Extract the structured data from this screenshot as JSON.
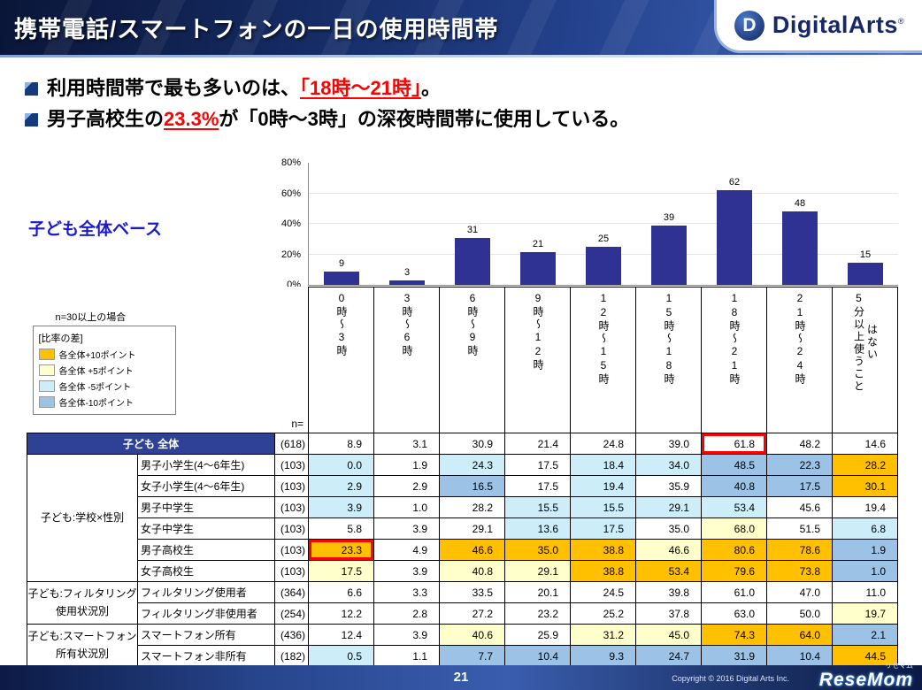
{
  "header": {
    "title": "携帯電話/スマートフォンの一日の使用時間帯",
    "logo": {
      "mark": "D",
      "text": "DigitalArts",
      "reg": "®"
    }
  },
  "bullets": [
    {
      "pre": "利用時間帯で最も多いのは、",
      "em": "「18時～21時」",
      "post": "。"
    },
    {
      "pre": "男子高校生の",
      "em": "23.3%",
      "post": "が「0時～3時」の深夜時間帯に使用している。"
    }
  ],
  "base_label": "子ども全体ベース",
  "legend": {
    "note": "n=30以上の場合",
    "title": "[比率の差]",
    "items": [
      {
        "label": "各全体+10ポイント",
        "color": "#FFC000"
      },
      {
        "label": "各全体 +5ポイント",
        "color": "#FFFFCC"
      },
      {
        "label": "各全体 -5ポイント",
        "color": "#CDEDF8"
      },
      {
        "label": "各全体-10ポイント",
        "color": "#9CC2E5"
      }
    ]
  },
  "chart_data": {
    "type": "bar",
    "title": "",
    "xlabel": "",
    "ylabel": "",
    "categories": [
      "0時～3時",
      "3時～6時",
      "6時～9時",
      "9時～12時",
      "12時～15時",
      "15時～18時",
      "18時～21時",
      "21時～24時",
      "5分以上使うことはない"
    ],
    "values": [
      8.9,
      3.1,
      30.9,
      21.4,
      24.8,
      39.0,
      61.8,
      48.2,
      14.6
    ],
    "bar_labels": [
      "9",
      "3",
      "31",
      "21",
      "25",
      "39",
      "62",
      "48",
      "15"
    ],
    "y_ticks": [
      80,
      60,
      40,
      20,
      0
    ],
    "ylim": [
      0,
      80
    ],
    "bar_color": "#2F3293",
    "grid": true,
    "legend_position": "none"
  },
  "table": {
    "n_header": "n=",
    "category_labels_vertical": [
      "0時～3時",
      "3時～6時",
      "6時～9時",
      "9時～12時",
      "12時～15時",
      "15時～18時",
      "18時～21時",
      "21時～24時",
      "5分以上使うこと\nはない"
    ],
    "total_row": {
      "label": "子ども 全体",
      "n": "(618)",
      "values": [
        8.9,
        3.1,
        30.9,
        21.4,
        24.8,
        39.0,
        61.8,
        48.2,
        14.6
      ],
      "red_box_col": 6
    },
    "groups": [
      {
        "name": "子ども:学校×性別",
        "rows": [
          {
            "label": "男子小学生(4～6年生)",
            "n": "(103)",
            "values": [
              0.0,
              1.9,
              24.3,
              17.5,
              18.4,
              34.0,
              48.5,
              22.3,
              28.2
            ]
          },
          {
            "label": "女子小学生(4～6年生)",
            "n": "(103)",
            "values": [
              2.9,
              2.9,
              16.5,
              17.5,
              19.4,
              35.9,
              40.8,
              17.5,
              30.1
            ]
          },
          {
            "label": "男子中学生",
            "n": "(103)",
            "values": [
              3.9,
              1.0,
              28.2,
              15.5,
              15.5,
              29.1,
              53.4,
              45.6,
              19.4
            ]
          },
          {
            "label": "女子中学生",
            "n": "(103)",
            "values": [
              5.8,
              3.9,
              29.1,
              13.6,
              17.5,
              35.0,
              68.0,
              51.5,
              6.8
            ]
          },
          {
            "label": "男子高校生",
            "n": "(103)",
            "values": [
              23.3,
              4.9,
              46.6,
              35.0,
              38.8,
              46.6,
              80.6,
              78.6,
              1.9
            ],
            "red_box_col": 0
          },
          {
            "label": "女子高校生",
            "n": "(103)",
            "values": [
              17.5,
              3.9,
              40.8,
              29.1,
              38.8,
              53.4,
              79.6,
              73.8,
              1.0
            ]
          }
        ]
      },
      {
        "name": "子ども:フィルタリング\n使用状況別",
        "rows": [
          {
            "label": "フィルタリング使用者",
            "n": "(364)",
            "values": [
              6.6,
              3.3,
              33.5,
              20.1,
              24.5,
              39.8,
              61.0,
              47.0,
              11.0
            ]
          },
          {
            "label": "フィルタリング非使用者",
            "n": "(254)",
            "values": [
              12.2,
              2.8,
              27.2,
              23.2,
              25.2,
              37.8,
              63.0,
              50.0,
              19.7
            ]
          }
        ]
      },
      {
        "name": "子ども:スマートフォン\n所有状況別",
        "rows": [
          {
            "label": "スマートフォン所有",
            "n": "(436)",
            "values": [
              12.4,
              3.9,
              40.6,
              25.9,
              31.2,
              45.0,
              74.3,
              64.0,
              2.1
            ]
          },
          {
            "label": "スマートフォン非所有",
            "n": "(182)",
            "values": [
              0.5,
              1.1,
              7.7,
              10.4,
              9.3,
              24.7,
              31.9,
              10.4,
              44.5
            ]
          }
        ]
      }
    ],
    "highlight_colors": {
      "gold": "#FFC000",
      "yellow": "#FFFFCC",
      "cyan": "#CDEDF8",
      "blue": "#9CC2E5"
    },
    "red_box_color": "#FF0000"
  },
  "footer": {
    "page": "21",
    "copyright": "Copyright © 2016 Digital Arts Inc.",
    "resemom": {
      "main": "ReseMom",
      "sub": "リセマム"
    }
  }
}
